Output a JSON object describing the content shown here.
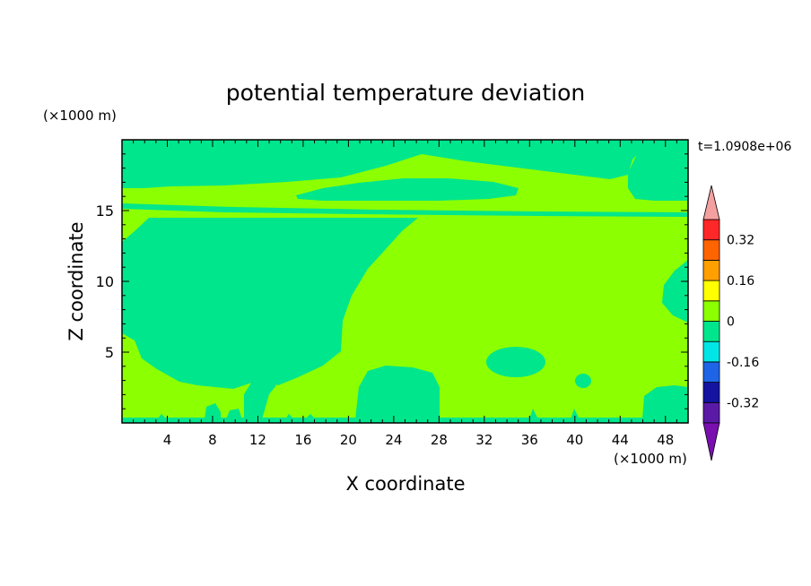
{
  "chart_data": {
    "type": "heatmap",
    "title": "potential temperature deviation",
    "time_label": "t=1.0908e+06",
    "xlabel": "X coordinate",
    "ylabel": "Z coordinate",
    "x_unit": "(×1000 m)",
    "y_unit": "(×1000 m)",
    "xlim": [
      0,
      50
    ],
    "ylim": [
      0,
      20
    ],
    "x_ticks": [
      "4",
      "8",
      "12",
      "16",
      "20",
      "24",
      "28",
      "32",
      "36",
      "40",
      "44",
      "48"
    ],
    "y_ticks": [
      "5",
      "10",
      "15"
    ],
    "levels": [
      -0.4,
      -0.32,
      -0.24,
      -0.16,
      -0.08,
      0,
      0.08,
      0.16,
      0.24,
      0.32,
      0.4
    ],
    "colorbar_labels": [
      "0.32",
      "0.16",
      "0",
      "-0.16",
      "-0.32"
    ],
    "colors": {
      "below_min": "#7a0fb0",
      "bands": [
        "#5b1aa6",
        "#1414a0",
        "#1e64e6",
        "#00e6e6",
        "#00e68c",
        "#8cff00",
        "#ffff00",
        "#ffa000",
        "#ff6400",
        "#ff2828"
      ],
      "above_max": "#f5a0a0",
      "field_zero_neg": "#00e68c",
      "field_zero_pos": "#8cff00"
    },
    "field_summary": "Domain dominated by values in [0, 0.08] and [-0.08, 0]; no values beyond these two bands are visible."
  }
}
